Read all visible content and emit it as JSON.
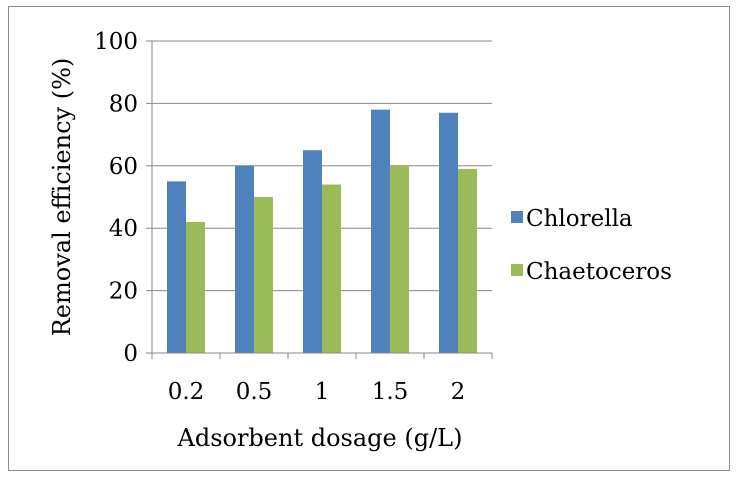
{
  "chart_data": {
    "type": "bar",
    "categories": [
      "0.2",
      "0.5",
      "1",
      "1.5",
      "2"
    ],
    "series": [
      {
        "name": "Chlorella",
        "values": [
          55,
          60,
          65,
          78,
          77
        ],
        "color": "#4f81bd"
      },
      {
        "name": "Chaetoceros",
        "values": [
          42,
          50,
          54,
          60,
          59
        ],
        "color": "#9bbb59"
      }
    ],
    "xlabel": "Adsorbent dosage (g/L)",
    "ylabel": "Removal efficiency (%)",
    "ylim": [
      0,
      100
    ],
    "yticks": [
      0,
      20,
      40,
      60,
      80,
      100
    ],
    "grid": true,
    "legend": "right"
  }
}
